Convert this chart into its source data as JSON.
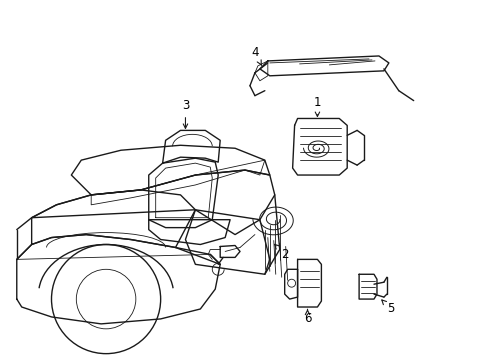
{
  "background_color": "#ffffff",
  "line_color": "#1a1a1a",
  "label_color": "#000000",
  "figsize": [
    4.89,
    3.6
  ],
  "dpi": 100,
  "lw_main": 1.0,
  "lw_thin": 0.6,
  "label_fs": 8.5
}
